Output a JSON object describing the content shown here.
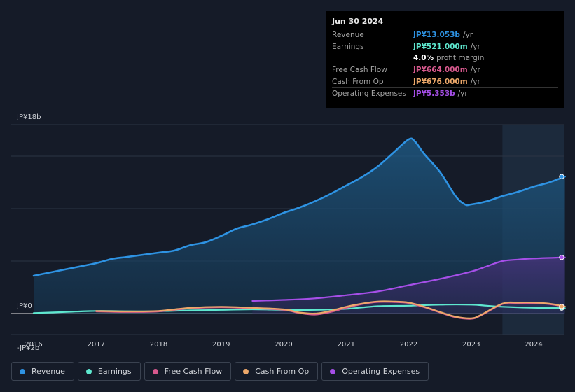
{
  "chart_data": {
    "type": "area",
    "title": "",
    "ylim": [
      -2,
      18
    ],
    "y_axis_labels": [
      "JP¥18b",
      "JP¥0",
      "-JP¥2b"
    ],
    "x_ticks": [
      2016,
      2017,
      2018,
      2019,
      2020,
      2021,
      2022,
      2023,
      2024
    ],
    "forecast_start": 2023.5,
    "series": [
      {
        "name": "Revenue",
        "color": "#2e93e3",
        "points": [
          [
            2016.0,
            3.6
          ],
          [
            2016.5,
            4.2
          ],
          [
            2017.0,
            4.8
          ],
          [
            2017.25,
            5.2
          ],
          [
            2017.5,
            5.4
          ],
          [
            2018.0,
            5.8
          ],
          [
            2018.25,
            6.0
          ],
          [
            2018.5,
            6.5
          ],
          [
            2018.75,
            6.8
          ],
          [
            2019.0,
            7.4
          ],
          [
            2019.25,
            8.1
          ],
          [
            2019.5,
            8.5
          ],
          [
            2019.75,
            9.0
          ],
          [
            2020.0,
            9.6
          ],
          [
            2020.25,
            10.1
          ],
          [
            2020.5,
            10.7
          ],
          [
            2020.75,
            11.4
          ],
          [
            2021.0,
            12.2
          ],
          [
            2021.25,
            13.0
          ],
          [
            2021.5,
            14.0
          ],
          [
            2021.75,
            15.3
          ],
          [
            2022.0,
            16.6
          ],
          [
            2022.1,
            16.4
          ],
          [
            2022.25,
            15.2
          ],
          [
            2022.5,
            13.5
          ],
          [
            2022.75,
            11.2
          ],
          [
            2022.9,
            10.4
          ],
          [
            2023.0,
            10.4
          ],
          [
            2023.25,
            10.7
          ],
          [
            2023.5,
            11.2
          ],
          [
            2023.75,
            11.6
          ],
          [
            2024.0,
            12.1
          ],
          [
            2024.25,
            12.5
          ],
          [
            2024.5,
            13.053
          ]
        ]
      },
      {
        "name": "Earnings",
        "color": "#5ee8cf",
        "points": [
          [
            2016.0,
            0.05
          ],
          [
            2016.5,
            0.15
          ],
          [
            2017.0,
            0.25
          ],
          [
            2017.5,
            0.22
          ],
          [
            2018.0,
            0.22
          ],
          [
            2018.5,
            0.3
          ],
          [
            2019.0,
            0.35
          ],
          [
            2019.5,
            0.4
          ],
          [
            2020.0,
            0.35
          ],
          [
            2020.5,
            0.35
          ],
          [
            2021.0,
            0.45
          ],
          [
            2021.5,
            0.7
          ],
          [
            2022.0,
            0.75
          ],
          [
            2022.5,
            0.85
          ],
          [
            2023.0,
            0.85
          ],
          [
            2023.25,
            0.75
          ],
          [
            2023.5,
            0.65
          ],
          [
            2024.0,
            0.55
          ],
          [
            2024.5,
            0.521
          ]
        ]
      },
      {
        "name": "Free Cash Flow",
        "color": "#d8598e",
        "points": [
          [
            2017.0,
            0.2
          ],
          [
            2017.5,
            0.15
          ],
          [
            2018.0,
            0.2
          ],
          [
            2018.5,
            0.5
          ],
          [
            2019.0,
            0.6
          ],
          [
            2019.5,
            0.5
          ],
          [
            2020.0,
            0.35
          ],
          [
            2020.25,
            0.05
          ],
          [
            2020.5,
            -0.1
          ],
          [
            2020.75,
            0.15
          ],
          [
            2021.0,
            0.55
          ],
          [
            2021.25,
            0.9
          ],
          [
            2021.5,
            1.1
          ],
          [
            2021.75,
            1.1
          ],
          [
            2022.0,
            1.0
          ],
          [
            2022.25,
            0.6
          ],
          [
            2022.5,
            0.1
          ],
          [
            2022.75,
            -0.35
          ],
          [
            2023.0,
            -0.5
          ],
          [
            2023.15,
            -0.2
          ],
          [
            2023.5,
            0.9
          ],
          [
            2023.75,
            1.0
          ],
          [
            2024.0,
            1.0
          ],
          [
            2024.25,
            0.9
          ],
          [
            2024.5,
            0.664
          ]
        ]
      },
      {
        "name": "Cash From Op",
        "color": "#eda86a",
        "points": [
          [
            2017.0,
            0.25
          ],
          [
            2017.5,
            0.2
          ],
          [
            2018.0,
            0.25
          ],
          [
            2018.5,
            0.55
          ],
          [
            2019.0,
            0.65
          ],
          [
            2019.5,
            0.55
          ],
          [
            2020.0,
            0.4
          ],
          [
            2020.25,
            0.1
          ],
          [
            2020.5,
            0.0
          ],
          [
            2020.75,
            0.25
          ],
          [
            2021.0,
            0.65
          ],
          [
            2021.25,
            0.95
          ],
          [
            2021.5,
            1.15
          ],
          [
            2021.75,
            1.15
          ],
          [
            2022.0,
            1.05
          ],
          [
            2022.25,
            0.65
          ],
          [
            2022.5,
            0.15
          ],
          [
            2022.75,
            -0.3
          ],
          [
            2023.0,
            -0.45
          ],
          [
            2023.15,
            -0.15
          ],
          [
            2023.5,
            0.95
          ],
          [
            2023.75,
            1.05
          ],
          [
            2024.0,
            1.05
          ],
          [
            2024.25,
            0.95
          ],
          [
            2024.5,
            0.676
          ]
        ]
      },
      {
        "name": "Operating Expenses",
        "color": "#a64fe8",
        "points": [
          [
            2019.5,
            1.2
          ],
          [
            2020.0,
            1.3
          ],
          [
            2020.5,
            1.45
          ],
          [
            2021.0,
            1.75
          ],
          [
            2021.5,
            2.1
          ],
          [
            2022.0,
            2.7
          ],
          [
            2022.5,
            3.3
          ],
          [
            2023.0,
            4.0
          ],
          [
            2023.25,
            4.5
          ],
          [
            2023.5,
            5.0
          ],
          [
            2023.75,
            5.15
          ],
          [
            2024.0,
            5.25
          ],
          [
            2024.5,
            5.353
          ]
        ]
      }
    ]
  },
  "tooltip": {
    "date": "Jun 30 2024",
    "rows": [
      {
        "label": "Revenue",
        "value": "JP¥13.053b",
        "unit": "/yr",
        "color": "#2e93e3"
      },
      {
        "label": "Earnings",
        "value": "JP¥521.000m",
        "unit": "/yr",
        "color": "#5ee8cf"
      },
      {
        "label": "",
        "value": "4.0%",
        "unit": "profit margin",
        "color": "#ffffff"
      },
      {
        "label": "Free Cash Flow",
        "value": "JP¥664.000m",
        "unit": "/yr",
        "color": "#d8598e"
      },
      {
        "label": "Cash From Op",
        "value": "JP¥676.000m",
        "unit": "/yr",
        "color": "#eda86a"
      },
      {
        "label": "Operating Expenses",
        "value": "JP¥5.353b",
        "unit": "/yr",
        "color": "#a64fe8"
      }
    ]
  },
  "legend": [
    {
      "label": "Revenue",
      "color": "#2e93e3"
    },
    {
      "label": "Earnings",
      "color": "#5ee8cf"
    },
    {
      "label": "Free Cash Flow",
      "color": "#d8598e"
    },
    {
      "label": "Cash From Op",
      "color": "#eda86a"
    },
    {
      "label": "Operating Expenses",
      "color": "#a64fe8"
    }
  ]
}
